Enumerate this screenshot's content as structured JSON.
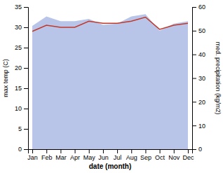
{
  "chart_data": {
    "type": "line",
    "categories": [
      "Jan",
      "Feb",
      "Mar",
      "Apr",
      "May",
      "Jun",
      "Jul",
      "Aug",
      "Sep",
      "Oct",
      "Nov",
      "Dec"
    ],
    "xlabel": "date (month)",
    "ylabel": "max temp (C)",
    "y2label": "med. precipitation (kg/m2)",
    "ylim": [
      0,
      35
    ],
    "yticks": [
      0,
      5,
      10,
      15,
      20,
      25,
      30,
      35
    ],
    "y2lim": [
      0,
      60
    ],
    "y2ticks": [
      0,
      10,
      20,
      30,
      40,
      50,
      60
    ],
    "series": [
      {
        "type": "area",
        "axis": "y2",
        "color": "#b8c4e8",
        "values": [
          52.0,
          56.0,
          54.0,
          54.0,
          55.0,
          52.5,
          53.0,
          56.0,
          57.0,
          50.0,
          53.0,
          54.0
        ]
      },
      {
        "type": "line",
        "color": "#c0392b",
        "values": [
          29.0,
          30.5,
          30.0,
          30.0,
          31.5,
          31.0,
          31.0,
          31.5,
          32.5,
          29.5,
          30.5,
          31.0
        ]
      }
    ]
  }
}
